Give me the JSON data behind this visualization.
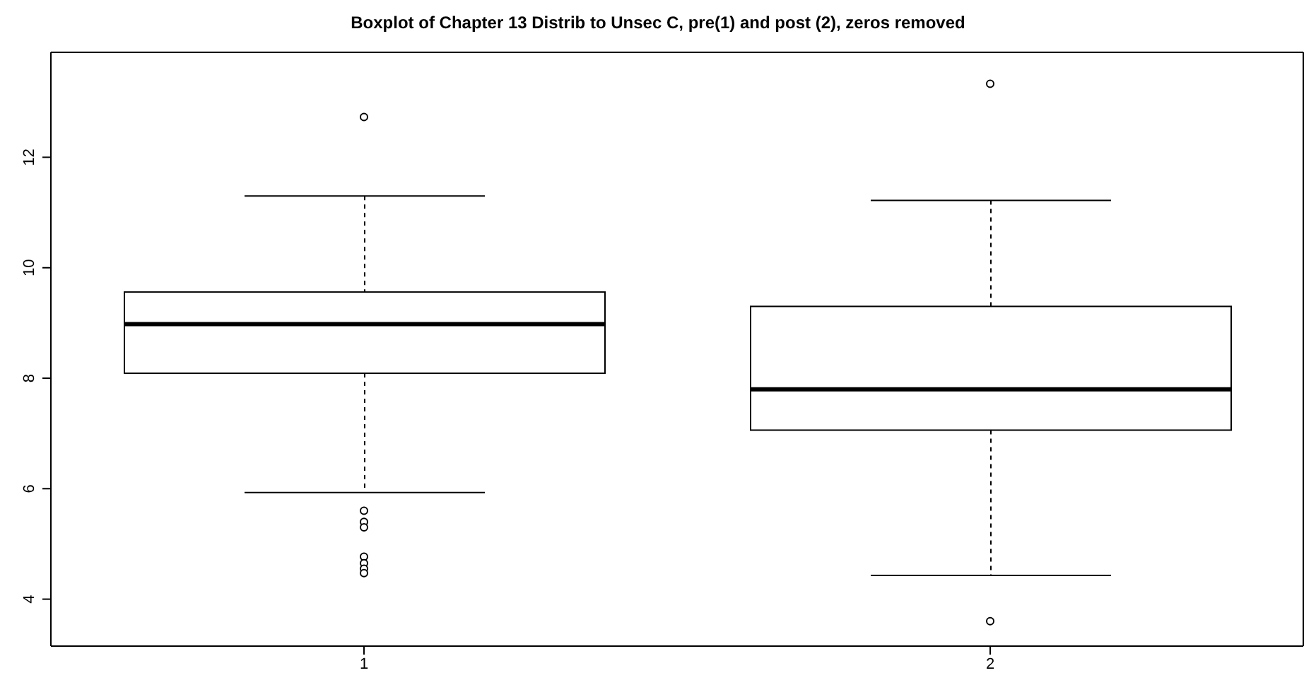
{
  "chart_data": {
    "type": "box",
    "title": "Boxplot of Chapter 13 Distrib to Unsec C, pre(1) and post (2), zeros removed",
    "categories": [
      "1",
      "2"
    ],
    "boxes": [
      {
        "low": 5.93,
        "q1": 8.09,
        "median": 8.98,
        "q3": 9.56,
        "high": 11.3,
        "outliers": [
          12.73,
          5.6,
          5.4,
          5.3,
          4.77,
          4.65,
          4.55,
          4.47
        ]
      },
      {
        "low": 4.43,
        "q1": 7.06,
        "median": 7.8,
        "q3": 9.3,
        "high": 11.22,
        "outliers": [
          13.33,
          3.6
        ]
      }
    ],
    "ylim": [
      3.15,
      13.9
    ],
    "yticks": [
      4,
      6,
      8,
      10,
      12
    ]
  }
}
